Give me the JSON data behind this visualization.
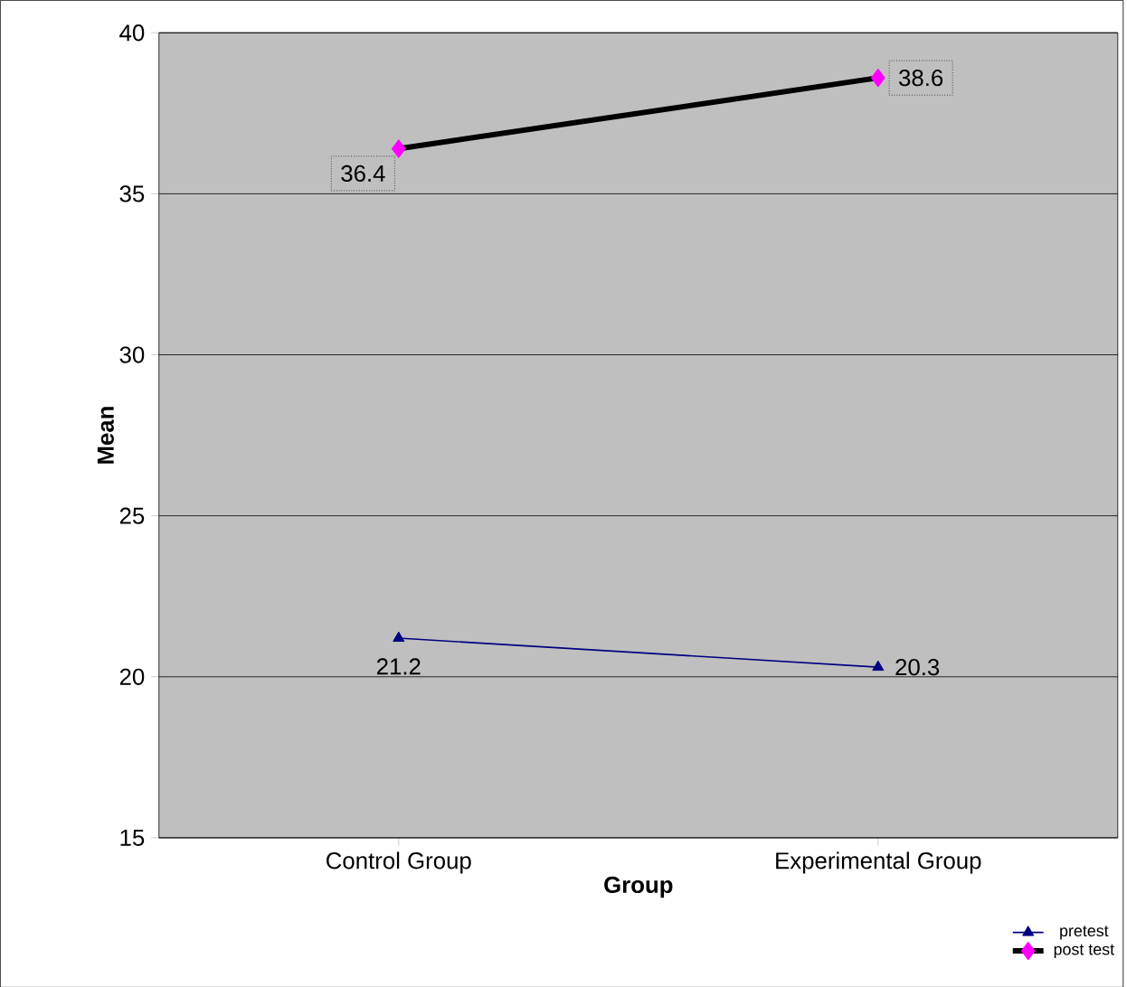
{
  "chart_data": {
    "type": "line",
    "xlabel": "Group",
    "ylabel": "Mean",
    "categories": [
      "Control Group",
      "Experimental Group"
    ],
    "series": [
      {
        "name": "pretest",
        "color": "#000080",
        "marker": "triangle",
        "values": [
          21.2,
          20.3
        ]
      },
      {
        "name": "post test",
        "color": "#000000",
        "colors": [
          "#ff00ff",
          "#ff00ff"
        ],
        "marker": "diamond",
        "values": [
          36.4,
          38.6
        ]
      }
    ],
    "ylim": [
      15,
      40
    ],
    "yticks": [
      15,
      20,
      25,
      30,
      35,
      40
    ],
    "grid": "y",
    "legend": "bottom right",
    "data_labels": true
  }
}
